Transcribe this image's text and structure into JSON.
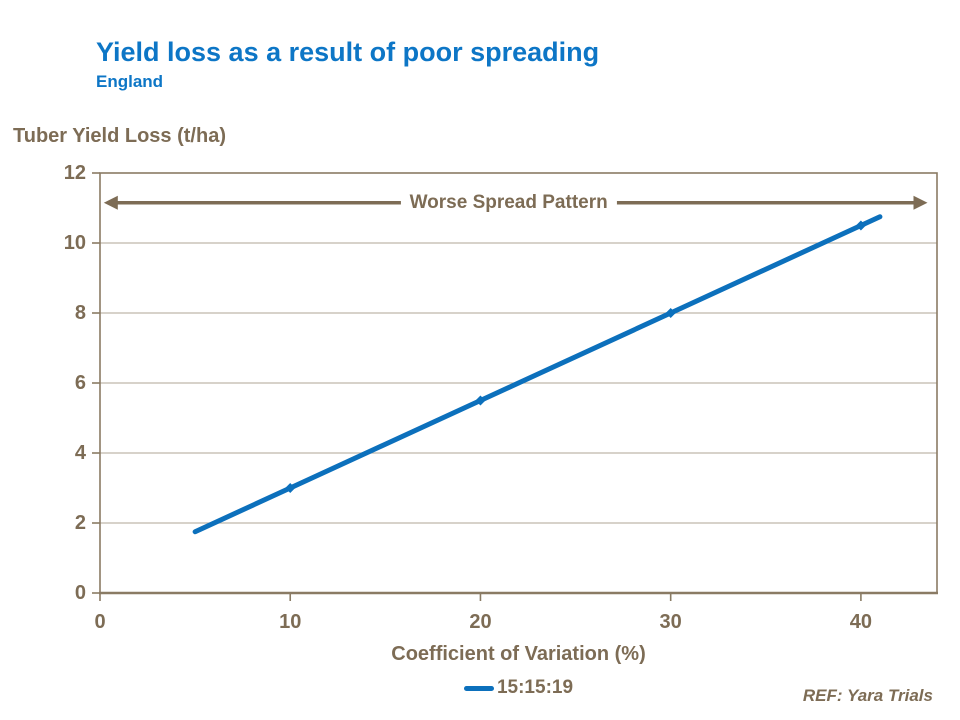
{
  "header": {
    "title": "Yield loss as a result of poor spreading",
    "subtitle": "England"
  },
  "chart": {
    "y_axis_title": "Tuber Yield Loss (t/ha)",
    "x_axis_title": "Coefficient of Variation (%)",
    "annotation_label": "Worse Spread Pattern",
    "legend_label": "15:15:19",
    "reference": "REF: Yara Trials"
  },
  "chart_data": {
    "type": "line",
    "title": "Yield loss as a result of poor spreading",
    "subtitle": "England",
    "xlabel": "Coefficient of Variation (%)",
    "ylabel": "Tuber Yield Loss (t/ha)",
    "xlim": [
      0,
      44
    ],
    "ylim": [
      0,
      12
    ],
    "x_ticks": [
      0,
      10,
      20,
      30,
      40
    ],
    "y_ticks": [
      0,
      2,
      4,
      6,
      8,
      10,
      12
    ],
    "grid": "horizontal-light",
    "legend_position": "bottom",
    "series": [
      {
        "name": "15:15:19",
        "color": "#0C70BC",
        "line_points": [
          [
            5,
            1.75
          ],
          [
            10,
            3
          ],
          [
            20,
            5.5
          ],
          [
            30,
            8
          ],
          [
            40,
            10.5
          ],
          [
            41,
            10.75
          ]
        ],
        "marker_points": [
          [
            10,
            3
          ],
          [
            20,
            5.5
          ],
          [
            30,
            8
          ],
          [
            40,
            10.5
          ]
        ]
      }
    ],
    "annotation": {
      "text": "Worse Spread Pattern",
      "style": "double-headed-arrow",
      "y": 11.15,
      "x_start": 0.2,
      "x_end": 43.5
    },
    "colors": {
      "title_blue": "#0D76C6",
      "line_blue": "#0C70BC",
      "brown_text": "#7D6C55",
      "axis_brown": "#8A7B64",
      "grid_line": "#BFB6AA"
    }
  }
}
